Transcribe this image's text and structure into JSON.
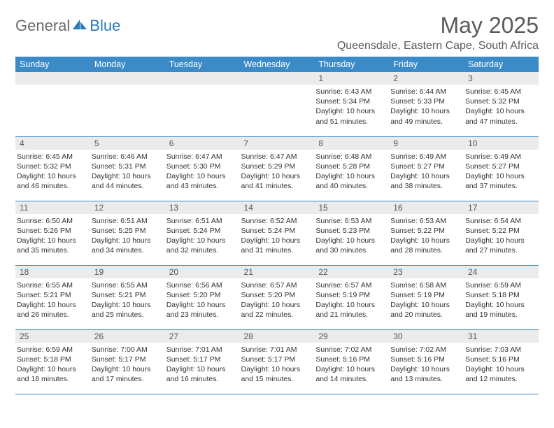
{
  "logo": {
    "general": "General",
    "blue": "Blue",
    "icon_color": "#2a7ab9"
  },
  "title": "May 2025",
  "location": "Queensdale, Eastern Cape, South Africa",
  "header_bg": "#3b8bc8",
  "header_fg": "#ffffff",
  "daynum_bg": "#ebebeb",
  "row_border": "#3b8bc8",
  "weekdays": [
    "Sunday",
    "Monday",
    "Tuesday",
    "Wednesday",
    "Thursday",
    "Friday",
    "Saturday"
  ],
  "weeks": [
    [
      null,
      null,
      null,
      null,
      {
        "n": "1",
        "sr": "6:43 AM",
        "ss": "5:34 PM",
        "dl": "10 hours and 51 minutes."
      },
      {
        "n": "2",
        "sr": "6:44 AM",
        "ss": "5:33 PM",
        "dl": "10 hours and 49 minutes."
      },
      {
        "n": "3",
        "sr": "6:45 AM",
        "ss": "5:32 PM",
        "dl": "10 hours and 47 minutes."
      }
    ],
    [
      {
        "n": "4",
        "sr": "6:45 AM",
        "ss": "5:32 PM",
        "dl": "10 hours and 46 minutes."
      },
      {
        "n": "5",
        "sr": "6:46 AM",
        "ss": "5:31 PM",
        "dl": "10 hours and 44 minutes."
      },
      {
        "n": "6",
        "sr": "6:47 AM",
        "ss": "5:30 PM",
        "dl": "10 hours and 43 minutes."
      },
      {
        "n": "7",
        "sr": "6:47 AM",
        "ss": "5:29 PM",
        "dl": "10 hours and 41 minutes."
      },
      {
        "n": "8",
        "sr": "6:48 AM",
        "ss": "5:28 PM",
        "dl": "10 hours and 40 minutes."
      },
      {
        "n": "9",
        "sr": "6:49 AM",
        "ss": "5:27 PM",
        "dl": "10 hours and 38 minutes."
      },
      {
        "n": "10",
        "sr": "6:49 AM",
        "ss": "5:27 PM",
        "dl": "10 hours and 37 minutes."
      }
    ],
    [
      {
        "n": "11",
        "sr": "6:50 AM",
        "ss": "5:26 PM",
        "dl": "10 hours and 35 minutes."
      },
      {
        "n": "12",
        "sr": "6:51 AM",
        "ss": "5:25 PM",
        "dl": "10 hours and 34 minutes."
      },
      {
        "n": "13",
        "sr": "6:51 AM",
        "ss": "5:24 PM",
        "dl": "10 hours and 32 minutes."
      },
      {
        "n": "14",
        "sr": "6:52 AM",
        "ss": "5:24 PM",
        "dl": "10 hours and 31 minutes."
      },
      {
        "n": "15",
        "sr": "6:53 AM",
        "ss": "5:23 PM",
        "dl": "10 hours and 30 minutes."
      },
      {
        "n": "16",
        "sr": "6:53 AM",
        "ss": "5:22 PM",
        "dl": "10 hours and 28 minutes."
      },
      {
        "n": "17",
        "sr": "6:54 AM",
        "ss": "5:22 PM",
        "dl": "10 hours and 27 minutes."
      }
    ],
    [
      {
        "n": "18",
        "sr": "6:55 AM",
        "ss": "5:21 PM",
        "dl": "10 hours and 26 minutes."
      },
      {
        "n": "19",
        "sr": "6:55 AM",
        "ss": "5:21 PM",
        "dl": "10 hours and 25 minutes."
      },
      {
        "n": "20",
        "sr": "6:56 AM",
        "ss": "5:20 PM",
        "dl": "10 hours and 23 minutes."
      },
      {
        "n": "21",
        "sr": "6:57 AM",
        "ss": "5:20 PM",
        "dl": "10 hours and 22 minutes."
      },
      {
        "n": "22",
        "sr": "6:57 AM",
        "ss": "5:19 PM",
        "dl": "10 hours and 21 minutes."
      },
      {
        "n": "23",
        "sr": "6:58 AM",
        "ss": "5:19 PM",
        "dl": "10 hours and 20 minutes."
      },
      {
        "n": "24",
        "sr": "6:59 AM",
        "ss": "5:18 PM",
        "dl": "10 hours and 19 minutes."
      }
    ],
    [
      {
        "n": "25",
        "sr": "6:59 AM",
        "ss": "5:18 PM",
        "dl": "10 hours and 18 minutes."
      },
      {
        "n": "26",
        "sr": "7:00 AM",
        "ss": "5:17 PM",
        "dl": "10 hours and 17 minutes."
      },
      {
        "n": "27",
        "sr": "7:01 AM",
        "ss": "5:17 PM",
        "dl": "10 hours and 16 minutes."
      },
      {
        "n": "28",
        "sr": "7:01 AM",
        "ss": "5:17 PM",
        "dl": "10 hours and 15 minutes."
      },
      {
        "n": "29",
        "sr": "7:02 AM",
        "ss": "5:16 PM",
        "dl": "10 hours and 14 minutes."
      },
      {
        "n": "30",
        "sr": "7:02 AM",
        "ss": "5:16 PM",
        "dl": "10 hours and 13 minutes."
      },
      {
        "n": "31",
        "sr": "7:03 AM",
        "ss": "5:16 PM",
        "dl": "10 hours and 12 minutes."
      }
    ]
  ],
  "labels": {
    "sunrise": "Sunrise:",
    "sunset": "Sunset:",
    "daylight": "Daylight:"
  }
}
